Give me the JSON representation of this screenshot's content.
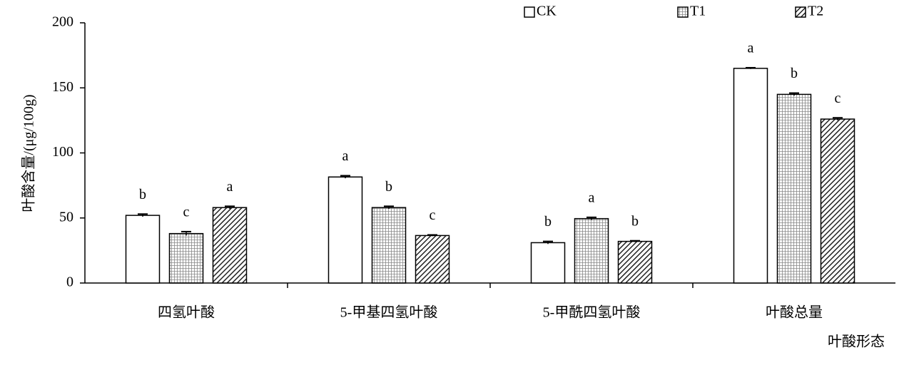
{
  "chart_data": {
    "type": "bar",
    "y_label": "叶酸含量/(μg/100g)",
    "x_label": "叶酸形态",
    "categories": [
      "四氢叶酸",
      "5-甲基四氢叶酸",
      "5-甲酰四氢叶酸",
      "叶酸总量"
    ],
    "series": [
      {
        "name": "CK",
        "color": "#ffffff",
        "pattern": "none",
        "values": [
          52,
          81.5,
          31,
          165
        ],
        "errors": [
          1,
          1,
          1,
          0.5
        ],
        "labels": [
          "b",
          "a",
          "b",
          "a"
        ]
      },
      {
        "name": "T1",
        "color": "#ffffff",
        "pattern": "grid",
        "values": [
          38,
          58,
          49.5,
          145
        ],
        "errors": [
          1.5,
          1,
          1,
          1
        ],
        "labels": [
          "c",
          "b",
          "a",
          "b"
        ]
      },
      {
        "name": "T2",
        "color": "#ffffff",
        "pattern": "hatch",
        "values": [
          58,
          36.5,
          32,
          126
        ],
        "errors": [
          1,
          0.5,
          0.5,
          1
        ],
        "labels": [
          "a",
          "c",
          "b",
          "c"
        ]
      }
    ],
    "ylim": [
      0,
      200
    ],
    "yticks": [
      0,
      50,
      100,
      150,
      200
    ],
    "grid": false,
    "legend": "top"
  }
}
